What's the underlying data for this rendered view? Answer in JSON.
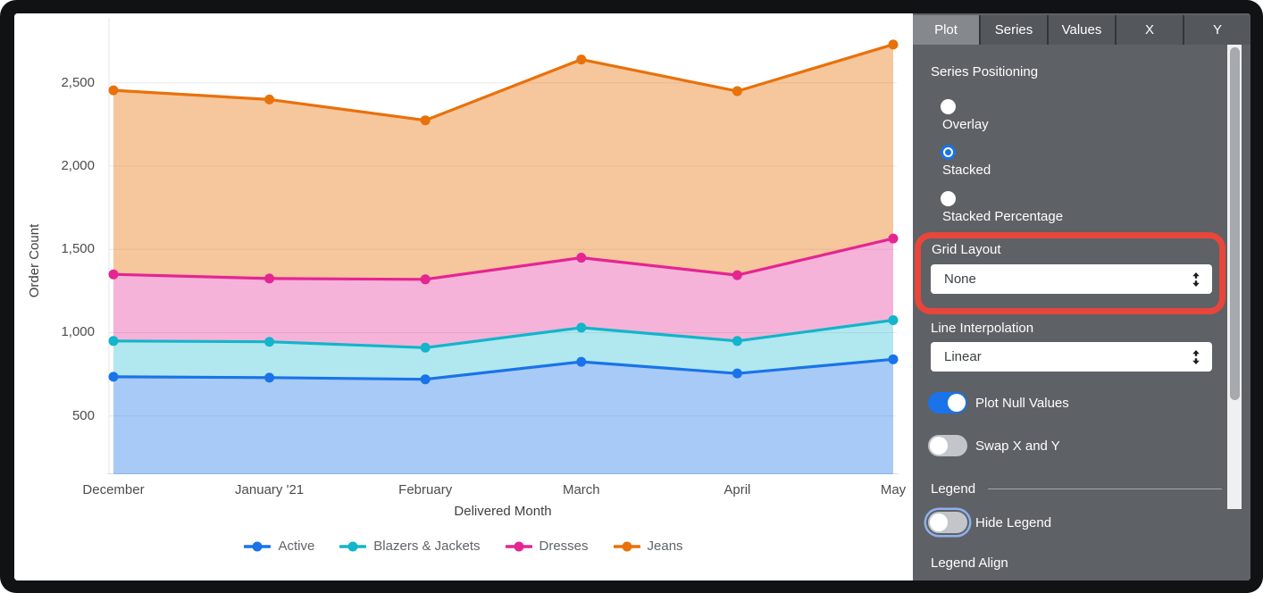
{
  "panel": {
    "tabs": [
      {
        "label": "Plot",
        "selected": true
      },
      {
        "label": "Series",
        "selected": false
      },
      {
        "label": "Values",
        "selected": false
      },
      {
        "label": "X",
        "selected": false
      },
      {
        "label": "Y",
        "selected": false
      }
    ],
    "series_positioning": {
      "label": "Series Positioning",
      "options": [
        {
          "label": "Overlay",
          "selected": false
        },
        {
          "label": "Stacked",
          "selected": true
        },
        {
          "label": "Stacked Percentage",
          "selected": false
        }
      ]
    },
    "grid_layout": {
      "label": "Grid Layout",
      "value": "None"
    },
    "line_interpolation": {
      "label": "Line Interpolation",
      "value": "Linear"
    },
    "plot_null_values": {
      "label": "Plot Null Values",
      "on": true
    },
    "swap_x_y": {
      "label": "Swap X and Y",
      "on": false
    },
    "legend_section": {
      "label": "Legend"
    },
    "hide_legend": {
      "label": "Hide Legend",
      "on": false,
      "focused": true
    },
    "legend_align": {
      "label": "Legend Align"
    },
    "highlight": {
      "target": "Grid Layout",
      "color": "#e8463a"
    },
    "icons": {
      "dropdown_arrow": "up-down-arrow-icon"
    },
    "colors": {
      "panel_bg": "#5e6165",
      "tab_selected": "#85888d",
      "tab_bg": "#54575b",
      "toggle_on": "#1a73e8",
      "toggle_off": "#c2c6cb"
    }
  },
  "chart_data": {
    "type": "area",
    "stacked": true,
    "title": "",
    "xlabel": "Delivered Month",
    "ylabel": "Order Count",
    "x": [
      "December",
      "January '21",
      "February",
      "March",
      "April",
      "May"
    ],
    "series": [
      {
        "name": "Active",
        "color": "#1A73E8",
        "fill_opacity": 0.38,
        "values": [
          735,
          730,
          720,
          825,
          755,
          840
        ]
      },
      {
        "name": "Blazers & Jackets",
        "color": "#12B5CB",
        "fill_opacity": 0.33,
        "values": [
          215,
          215,
          190,
          205,
          195,
          235
        ]
      },
      {
        "name": "Dresses",
        "color": "#E52592",
        "fill_opacity": 0.35,
        "values": [
          400,
          380,
          410,
          420,
          395,
          490
        ]
      },
      {
        "name": "Jeans",
        "color": "#E8710A",
        "fill_opacity": 0.4,
        "values": [
          1105,
          1075,
          955,
          1190,
          1105,
          1165
        ]
      }
    ],
    "y_ticks": [
      {
        "label": "500",
        "value": 500
      },
      {
        "label": "1,000",
        "value": 1000
      },
      {
        "label": "1,500",
        "value": 1500
      },
      {
        "label": "2,000",
        "value": 2000
      },
      {
        "label": "2,500",
        "value": 2500
      }
    ],
    "ylim": [
      150,
      2890
    ],
    "grid": true,
    "legend_position": "bottom",
    "marker": "line-dot"
  }
}
